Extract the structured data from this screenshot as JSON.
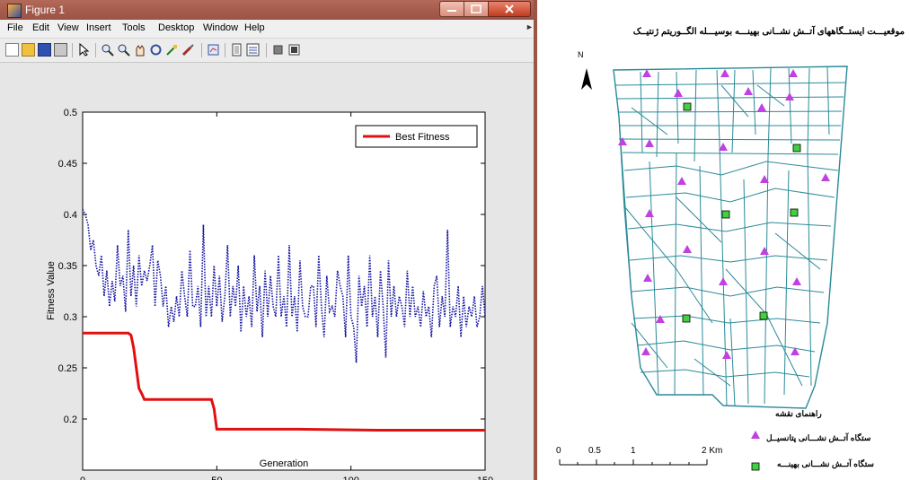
{
  "window": {
    "title": "Figure 1",
    "menu": [
      "File",
      "Edit",
      "View",
      "Insert",
      "Tools",
      "Desktop",
      "Window",
      "Help"
    ],
    "toolbar_icons": [
      "new-figure-icon",
      "open-file-icon",
      "save-icon",
      "print-icon",
      "select-arrow-icon",
      "zoom-in-icon",
      "zoom-out-icon",
      "pan-icon",
      "rotate-3d-icon",
      "data-cursor-icon",
      "brush-icon",
      "link-plot-icon",
      "colorbar-icon",
      "legend-icon",
      "hide-plot-tools-icon",
      "show-plot-tools-icon"
    ]
  },
  "chart_data": {
    "type": "line",
    "xlabel": "Generation",
    "ylabel": "Fitness Value",
    "xlim": [
      0,
      150
    ],
    "ylim": [
      0.15,
      0.5
    ],
    "xticks": [
      "0",
      "50",
      "100",
      "150"
    ],
    "yticks": [
      "0.2",
      "0.25",
      "0.3",
      "0.35",
      "0.4",
      "0.45",
      "0.5"
    ],
    "legend": {
      "position": "top-right",
      "entries": [
        "Best Fitness"
      ]
    },
    "grid": false,
    "series": [
      {
        "name": "Best Fitness",
        "color": "#e01010",
        "style": "solid",
        "x": [
          0,
          17,
          18,
          19,
          20,
          21,
          22,
          23,
          24,
          48,
          49,
          50,
          80,
          110,
          150
        ],
        "y": [
          0.284,
          0.284,
          0.282,
          0.27,
          0.25,
          0.23,
          0.225,
          0.219,
          0.219,
          0.219,
          0.21,
          0.19,
          0.19,
          0.189,
          0.189
        ]
      },
      {
        "color": "#1010a0",
        "style": "dotted",
        "x": [
          0,
          1,
          2,
          3,
          4,
          5,
          6,
          7,
          8,
          9,
          10,
          11,
          12,
          13,
          14,
          15,
          16,
          17,
          18,
          19,
          20,
          21,
          22,
          23,
          24,
          25,
          26,
          27,
          28,
          29,
          30,
          31,
          32,
          33,
          34,
          35,
          36,
          37,
          38,
          39,
          40,
          41,
          42,
          43,
          44,
          45,
          46,
          47,
          48,
          49,
          50,
          51,
          52,
          53,
          54,
          55,
          56,
          57,
          58,
          59,
          60,
          61,
          62,
          63,
          64,
          65,
          66,
          67,
          68,
          69,
          70,
          71,
          72,
          73,
          74,
          75,
          76,
          77,
          78,
          79,
          80,
          81,
          82,
          83,
          84,
          85,
          86,
          87,
          88,
          89,
          90,
          91,
          92,
          93,
          94,
          95,
          96,
          97,
          98,
          99,
          100,
          101,
          102,
          103,
          104,
          105,
          106,
          107,
          108,
          109,
          110,
          111,
          112,
          113,
          114,
          115,
          116,
          117,
          118,
          119,
          120,
          121,
          122,
          123,
          124,
          125,
          126,
          127,
          128,
          129,
          130,
          131,
          132,
          133,
          134,
          135,
          136,
          137,
          138,
          139,
          140,
          141,
          142,
          143,
          144,
          145,
          146,
          147,
          148,
          149,
          150
        ],
        "y": [
          0.405,
          0.4,
          0.39,
          0.365,
          0.375,
          0.35,
          0.34,
          0.36,
          0.32,
          0.345,
          0.31,
          0.335,
          0.315,
          0.37,
          0.33,
          0.34,
          0.305,
          0.385,
          0.32,
          0.35,
          0.31,
          0.36,
          0.33,
          0.345,
          0.335,
          0.35,
          0.37,
          0.31,
          0.355,
          0.34,
          0.31,
          0.33,
          0.29,
          0.31,
          0.295,
          0.32,
          0.3,
          0.345,
          0.32,
          0.3,
          0.365,
          0.31,
          0.31,
          0.33,
          0.29,
          0.39,
          0.3,
          0.33,
          0.3,
          0.35,
          0.31,
          0.34,
          0.295,
          0.32,
          0.37,
          0.3,
          0.33,
          0.31,
          0.35,
          0.285,
          0.33,
          0.3,
          0.32,
          0.29,
          0.36,
          0.305,
          0.33,
          0.28,
          0.345,
          0.3,
          0.34,
          0.31,
          0.3,
          0.36,
          0.3,
          0.32,
          0.29,
          0.37,
          0.3,
          0.32,
          0.285,
          0.355,
          0.31,
          0.3,
          0.3,
          0.33,
          0.33,
          0.29,
          0.36,
          0.31,
          0.28,
          0.34,
          0.305,
          0.31,
          0.3,
          0.345,
          0.33,
          0.32,
          0.28,
          0.36,
          0.3,
          0.29,
          0.255,
          0.34,
          0.31,
          0.33,
          0.29,
          0.36,
          0.3,
          0.32,
          0.28,
          0.345,
          0.31,
          0.26,
          0.355,
          0.3,
          0.33,
          0.3,
          0.32,
          0.31,
          0.29,
          0.345,
          0.3,
          0.33,
          0.3,
          0.31,
          0.29,
          0.325,
          0.3,
          0.31,
          0.28,
          0.33,
          0.34,
          0.29,
          0.32,
          0.3,
          0.385,
          0.29,
          0.31,
          0.3,
          0.33,
          0.28,
          0.32,
          0.29,
          0.31,
          0.3,
          0.32,
          0.29,
          0.3,
          0.33,
          0.3
        ]
      }
    ]
  },
  "map": {
    "title": "موقعیـــت ایستــگاههای آتــش نشــانی بهینـــه بوسیـــله الگــوریتم ژنتیــک",
    "north": "N",
    "legend_title": "راهنمای نقشه",
    "legend_candidate": "ستگاه آتــش نشـــانی پتانسیــل",
    "legend_optimal": "ستگاه آتــش نشـــانی بهینـــه",
    "scale_labels": [
      "0",
      "0.5",
      "1",
      "2 Km"
    ],
    "road_color": "#2a8a99",
    "candidate_color": "#c040e0",
    "optimal_color": "#40d040"
  }
}
